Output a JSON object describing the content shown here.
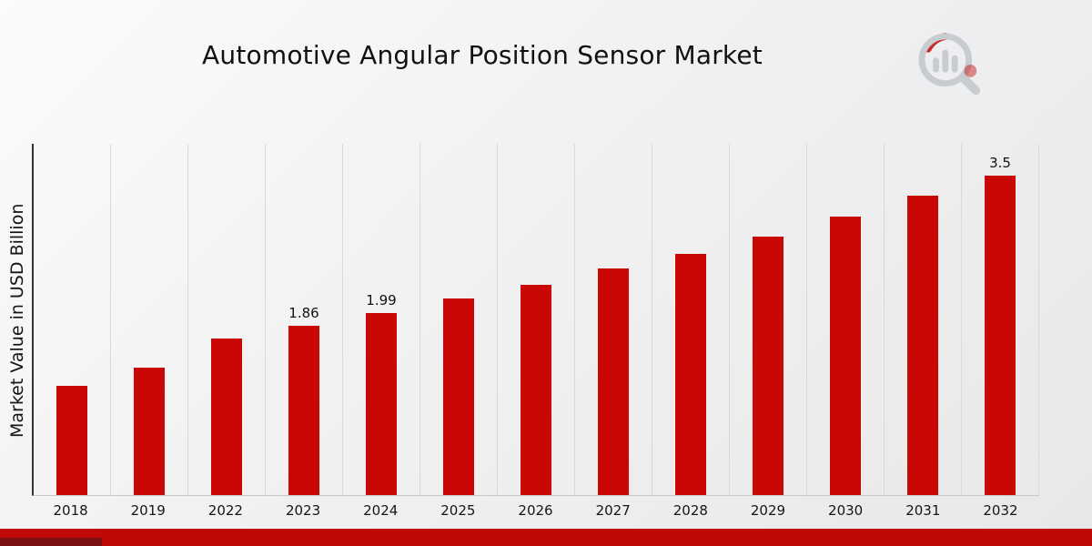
{
  "page": {
    "title": "Automotive Angular Position Sensor Market"
  },
  "colors": {
    "bar": "#c90707",
    "ribbon": "#c00808",
    "ribbon_fold": "#7d1012",
    "axis": "#333333",
    "gridline": "#d9d9da",
    "logo_gray": "#c7ccd1",
    "logo_red": "#c00808"
  },
  "chart_data": {
    "type": "bar",
    "title": "Automotive Angular Position Sensor Market",
    "xlabel": "",
    "ylabel": "Market Value in USD Billion",
    "categories": [
      "2018",
      "2019",
      "2022",
      "2023",
      "2024",
      "2025",
      "2026",
      "2027",
      "2028",
      "2029",
      "2030",
      "2031",
      "2032"
    ],
    "values": [
      1.2,
      1.4,
      1.72,
      1.86,
      1.99,
      2.15,
      2.3,
      2.48,
      2.64,
      2.83,
      3.05,
      3.28,
      3.5
    ],
    "data_labels": [
      "",
      "",
      "",
      "1.86",
      "1.99",
      "",
      "",
      "",
      "",
      "",
      "",
      "",
      "3.5"
    ],
    "ylim": [
      0,
      3.85
    ],
    "grid": "vertical-only",
    "legend": "none",
    "bar_color": "#c90707"
  }
}
